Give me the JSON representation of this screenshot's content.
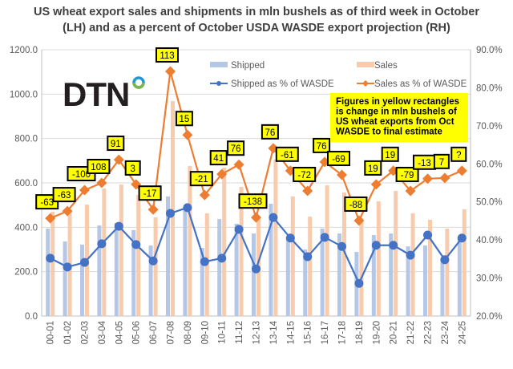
{
  "chart_data": {
    "type": "bar+line",
    "title": "US wheat export sales and shipments in mln bushels as of third week in October (LH) and as a percent of October USDA WASDE export projection (RH)",
    "title_lines": [
      "US wheat export sales and shipments in mln bushels as of third week in October",
      "(LH) and as a percent of October USDA WASDE export projection (RH)"
    ],
    "categories": [
      "00-01",
      "01-02",
      "02-03",
      "03-04",
      "04-05",
      "05-06",
      "06-07",
      "07-08",
      "08-09",
      "09-10",
      "10-11",
      "11-12",
      "12-13",
      "13-14",
      "14-15",
      "15-16",
      "16-17",
      "17-18",
      "18-19",
      "19-20",
      "20-21",
      "21-22",
      "22-23",
      "23-24",
      "24-25"
    ],
    "series": [
      {
        "name": "Shipped",
        "type": "bar",
        "axis": "left",
        "color": "#b4c7e7",
        "values": [
          394,
          336,
          322,
          408,
          420,
          387,
          318,
          539,
          490,
          307,
          437,
          416,
          372,
          506,
          355,
          300,
          394,
          372,
          289,
          365,
          372,
          314,
          318,
          260,
          355
        ]
      },
      {
        "name": "Sales",
        "type": "bar",
        "axis": "left",
        "color": "#f8cbad",
        "values": [
          470,
          470,
          502,
          575,
          593,
          546,
          445,
          969,
          676,
          463,
          669,
          582,
          440,
          705,
          539,
          448,
          589,
          557,
          440,
          517,
          564,
          463,
          434,
          394,
          481
        ]
      },
      {
        "name": "Shipped as % of WASDE",
        "type": "line",
        "axis": "right",
        "color": "#4472c4",
        "values": [
          35.2,
          32.9,
          34.1,
          39.0,
          43.6,
          38.8,
          34.5,
          47.0,
          48.5,
          34.3,
          35.2,
          42.8,
          32.4,
          45.9,
          40.5,
          35.6,
          40.7,
          38.3,
          28.6,
          38.6,
          38.6,
          36.0,
          41.3,
          34.8,
          40.5
        ]
      },
      {
        "name": "Sales as % of WASDE",
        "type": "line",
        "axis": "right",
        "color": "#ed7d31",
        "values": [
          45.7,
          47.6,
          53.1,
          55.0,
          61.1,
          54.6,
          48.0,
          84.3,
          67.6,
          51.8,
          57.3,
          59.8,
          45.9,
          64.1,
          58.2,
          52.9,
          60.5,
          57.1,
          45.1,
          54.6,
          58.2,
          52.9,
          56.1,
          56.3,
          58.2
        ]
      }
    ],
    "change_labels": [
      "-63",
      "-63",
      "-100",
      "108",
      "91",
      "3",
      "-17",
      "113",
      "15",
      "-21",
      "41",
      "76",
      "-138",
      "76",
      "-61",
      "-72",
      "76",
      "-69",
      "-88",
      "19",
      "19",
      "-79",
      "-13",
      "7",
      "?"
    ],
    "y_left": {
      "range": [
        0,
        1200
      ],
      "ticks": [
        "0.0",
        "200.0",
        "400.0",
        "600.0",
        "800.0",
        "1000.0",
        "1200.0"
      ]
    },
    "y_right": {
      "range": [
        20,
        90
      ],
      "ticks": [
        "20.0%",
        "30.0%",
        "40.0%",
        "50.0%",
        "60.0%",
        "70.0%",
        "80.0%",
        "90.0%"
      ]
    },
    "legend_position": "top-right",
    "grid": true,
    "annotation": [
      "Figures in yellow rectangles",
      "is change in mln bushels of",
      "US wheat exports from Oct",
      "WASDE to final estimate"
    ],
    "annotation_color": "#ffff00",
    "logo_text": "DTN"
  }
}
